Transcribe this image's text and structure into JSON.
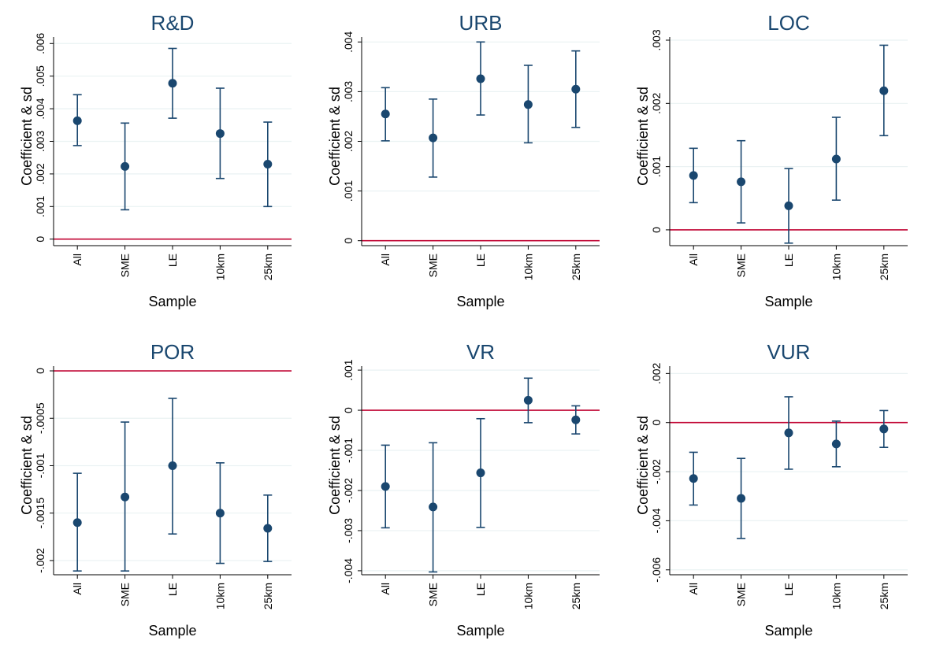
{
  "chart_data": [
    {
      "type": "scatter",
      "title": "R&D",
      "xlabel": "Sample",
      "ylabel": "Coefficient & sd",
      "categories": [
        "All",
        "SME",
        "LE",
        "10km",
        "25km"
      ],
      "yticks": [
        0,
        0.001,
        0.002,
        0.003,
        0.004,
        0.005,
        0.006
      ],
      "ytick_labels": [
        "0",
        ".001",
        ".002",
        ".003",
        ".004",
        ".005",
        ".006"
      ],
      "ylim": [
        -0.0002,
        0.0062
      ],
      "reference_line": 0,
      "points": [
        {
          "x": "All",
          "y": 0.00363,
          "lower": 0.00287,
          "upper": 0.00443
        },
        {
          "x": "SME",
          "y": 0.00223,
          "lower": 0.0009,
          "upper": 0.00356
        },
        {
          "x": "LE",
          "y": 0.00478,
          "lower": 0.00371,
          "upper": 0.00585
        },
        {
          "x": "10km",
          "y": 0.00324,
          "lower": 0.00186,
          "upper": 0.00463
        },
        {
          "x": "25km",
          "y": 0.0023,
          "lower": 0.001,
          "upper": 0.00359
        }
      ],
      "grid": true
    },
    {
      "type": "scatter",
      "title": "URB",
      "xlabel": "Sample",
      "ylabel": "Coefficient & sd",
      "categories": [
        "All",
        "SME",
        "LE",
        "10km",
        "25km"
      ],
      "yticks": [
        0,
        0.001,
        0.002,
        0.003,
        0.004
      ],
      "ytick_labels": [
        "0",
        ".001",
        ".002",
        ".003",
        ".004"
      ],
      "ylim": [
        -0.0001,
        0.0041
      ],
      "reference_line": 0,
      "points": [
        {
          "x": "All",
          "y": 0.00255,
          "lower": 0.00201,
          "upper": 0.00308
        },
        {
          "x": "SME",
          "y": 0.00207,
          "lower": 0.00128,
          "upper": 0.00285
        },
        {
          "x": "LE",
          "y": 0.00326,
          "lower": 0.00253,
          "upper": 0.004
        },
        {
          "x": "10km",
          "y": 0.00274,
          "lower": 0.00197,
          "upper": 0.00353
        },
        {
          "x": "25km",
          "y": 0.00305,
          "lower": 0.00228,
          "upper": 0.00382
        }
      ],
      "grid": true
    },
    {
      "type": "scatter",
      "title": "LOC",
      "xlabel": "Sample",
      "ylabel": "Coefficient & sd",
      "categories": [
        "All",
        "SME",
        "LE",
        "10km",
        "25km"
      ],
      "yticks": [
        0,
        0.001,
        0.002,
        0.003
      ],
      "ytick_labels": [
        "0",
        ".001",
        ".002",
        ".003"
      ],
      "ylim": [
        -0.00025,
        0.00305
      ],
      "reference_line": 0,
      "points": [
        {
          "x": "All",
          "y": 0.00086,
          "lower": 0.00043,
          "upper": 0.00129
        },
        {
          "x": "SME",
          "y": 0.00076,
          "lower": 0.00011,
          "upper": 0.00141
        },
        {
          "x": "LE",
          "y": 0.00038,
          "lower": -0.00021,
          "upper": 0.00097
        },
        {
          "x": "10km",
          "y": 0.00112,
          "lower": 0.00047,
          "upper": 0.00178
        },
        {
          "x": "25km",
          "y": 0.0022,
          "lower": 0.00149,
          "upper": 0.00292
        }
      ],
      "grid": true
    },
    {
      "type": "scatter",
      "title": "POR",
      "xlabel": "Sample",
      "ylabel": "Coefficient & sd",
      "categories": [
        "All",
        "SME",
        "LE",
        "10km",
        "25km"
      ],
      "yticks": [
        0,
        -0.0005,
        -0.001,
        -0.0015,
        -0.002
      ],
      "ytick_labels": [
        "0",
        "-.0005",
        "-.001",
        "-.0015",
        "-.002"
      ],
      "ylim": [
        -0.00215,
        5e-05
      ],
      "reference_line": 0,
      "points": [
        {
          "x": "All",
          "y": -0.0016,
          "lower": -0.00211,
          "upper": -0.00108
        },
        {
          "x": "SME",
          "y": -0.00133,
          "lower": -0.00211,
          "upper": -0.00054
        },
        {
          "x": "LE",
          "y": -0.001,
          "lower": -0.00172,
          "upper": -0.00029
        },
        {
          "x": "10km",
          "y": -0.0015,
          "lower": -0.00203,
          "upper": -0.00097
        },
        {
          "x": "25km",
          "y": -0.00166,
          "lower": -0.00201,
          "upper": -0.00131
        }
      ],
      "grid": true
    },
    {
      "type": "scatter",
      "title": "VR",
      "xlabel": "Sample",
      "ylabel": "Coefficient & sd",
      "categories": [
        "All",
        "SME",
        "LE",
        "10km",
        "25km"
      ],
      "yticks": [
        0.001,
        0,
        -0.001,
        -0.002,
        -0.003,
        -0.004
      ],
      "ytick_labels": [
        ".001",
        "0",
        "-.001",
        "-.002",
        "-.003",
        "-.004"
      ],
      "ylim": [
        -0.0041,
        0.0011
      ],
      "reference_line": 0,
      "points": [
        {
          "x": "All",
          "y": -0.0019,
          "lower": -0.00293,
          "upper": -0.00087
        },
        {
          "x": "SME",
          "y": -0.00241,
          "lower": -0.00403,
          "upper": -0.00081
        },
        {
          "x": "LE",
          "y": -0.00156,
          "lower": -0.00292,
          "upper": -0.00021
        },
        {
          "x": "10km",
          "y": 0.00025,
          "lower": -0.00031,
          "upper": 0.0008
        },
        {
          "x": "25km",
          "y": -0.00024,
          "lower": -0.00059,
          "upper": 0.00011
        }
      ],
      "grid": true
    },
    {
      "type": "scatter",
      "title": "VUR",
      "xlabel": "Sample",
      "ylabel": "Coefficient & sd",
      "categories": [
        "All",
        "SME",
        "LE",
        "10km",
        "25km"
      ],
      "yticks": [
        0.002,
        0,
        -0.002,
        -0.004,
        -0.006
      ],
      "ytick_labels": [
        ".002",
        "0",
        "-.002",
        "-.004",
        "-.006"
      ],
      "ylim": [
        -0.0062,
        0.0023
      ],
      "reference_line": 0,
      "points": [
        {
          "x": "All",
          "y": -0.00228,
          "lower": -0.00336,
          "upper": -0.00121
        },
        {
          "x": "SME",
          "y": -0.00309,
          "lower": -0.00472,
          "upper": -0.00146
        },
        {
          "x": "LE",
          "y": -0.00042,
          "lower": -0.0019,
          "upper": 0.00105
        },
        {
          "x": "10km",
          "y": -0.00087,
          "lower": -0.0018,
          "upper": 6e-05
        },
        {
          "x": "25km",
          "y": -0.00026,
          "lower": -0.00101,
          "upper": 0.00049
        }
      ],
      "grid": true
    }
  ]
}
